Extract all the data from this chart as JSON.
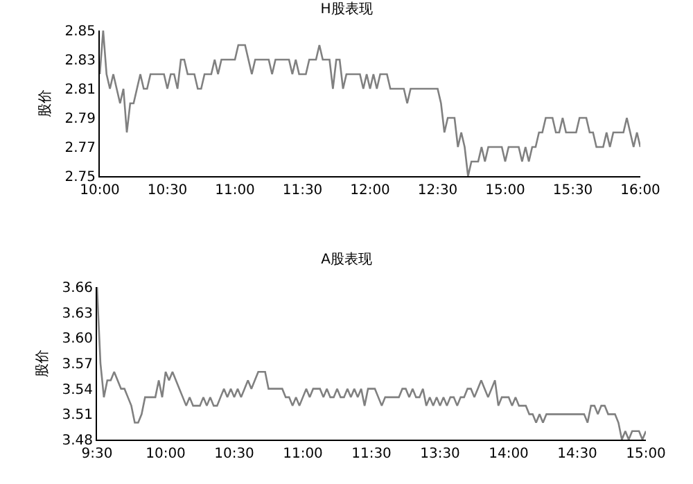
{
  "chart_data": [
    {
      "type": "line",
      "title": "H股表现",
      "ylabel": "股价",
      "grid": false,
      "marker": "none",
      "line_style": "solid",
      "categories": [
        "10:00",
        null,
        null,
        null,
        null,
        null,
        null,
        null,
        null,
        null,
        null,
        null,
        null,
        null,
        null,
        null,
        null,
        null,
        null,
        null,
        "10:30",
        null,
        null,
        null,
        null,
        null,
        null,
        null,
        null,
        null,
        null,
        null,
        null,
        null,
        null,
        null,
        null,
        null,
        null,
        null,
        "11:00",
        null,
        null,
        null,
        null,
        null,
        null,
        null,
        null,
        null,
        null,
        null,
        null,
        null,
        null,
        null,
        null,
        null,
        null,
        null,
        "11:30",
        null,
        null,
        null,
        null,
        null,
        null,
        null,
        null,
        null,
        null,
        null,
        null,
        null,
        null,
        null,
        null,
        null,
        null,
        null,
        "12:00",
        null,
        null,
        null,
        null,
        null,
        null,
        null,
        null,
        null,
        null,
        null,
        null,
        null,
        null,
        null,
        null,
        null,
        null,
        null,
        "12:30",
        null,
        null,
        null,
        null,
        null,
        null,
        null,
        null,
        null,
        null,
        null,
        null,
        null,
        null,
        null,
        null,
        null,
        null,
        null,
        "15:00",
        null,
        null,
        null,
        null,
        null,
        null,
        null,
        null,
        null,
        null,
        null,
        null,
        null,
        null,
        null,
        null,
        null,
        null,
        null,
        "15:30",
        null,
        null,
        null,
        null,
        null,
        null,
        null,
        null,
        null,
        null,
        null,
        null,
        null,
        null,
        null,
        null,
        null,
        null,
        null,
        "16:00"
      ],
      "ylim": [
        2.75,
        2.85
      ],
      "yticks": [
        2.75,
        2.77,
        2.79,
        2.81,
        2.83,
        2.85
      ],
      "series": [
        {
          "color": "#808080",
          "values": [
            2.82,
            2.85,
            2.82,
            2.81,
            2.82,
            2.81,
            2.8,
            2.81,
            2.78,
            2.8,
            2.8,
            2.81,
            2.82,
            2.81,
            2.81,
            2.82,
            2.82,
            2.82,
            2.82,
            2.82,
            2.81,
            2.82,
            2.82,
            2.81,
            2.83,
            2.83,
            2.82,
            2.82,
            2.82,
            2.81,
            2.81,
            2.82,
            2.82,
            2.82,
            2.83,
            2.82,
            2.83,
            2.83,
            2.83,
            2.83,
            2.83,
            2.84,
            2.84,
            2.84,
            2.83,
            2.82,
            2.83,
            2.83,
            2.83,
            2.83,
            2.83,
            2.82,
            2.83,
            2.83,
            2.83,
            2.83,
            2.83,
            2.82,
            2.83,
            2.82,
            2.82,
            2.82,
            2.83,
            2.83,
            2.83,
            2.84,
            2.83,
            2.83,
            2.83,
            2.81,
            2.83,
            2.83,
            2.81,
            2.82,
            2.82,
            2.82,
            2.82,
            2.82,
            2.81,
            2.82,
            2.81,
            2.82,
            2.81,
            2.82,
            2.82,
            2.82,
            2.81,
            2.81,
            2.81,
            2.81,
            2.81,
            2.8,
            2.81,
            2.81,
            2.81,
            2.81,
            2.81,
            2.81,
            2.81,
            2.81,
            2.81,
            2.8,
            2.78,
            2.79,
            2.79,
            2.79,
            2.77,
            2.78,
            2.77,
            2.75,
            2.76,
            2.76,
            2.76,
            2.77,
            2.76,
            2.77,
            2.77,
            2.77,
            2.77,
            2.77,
            2.76,
            2.77,
            2.77,
            2.77,
            2.77,
            2.76,
            2.77,
            2.76,
            2.77,
            2.77,
            2.78,
            2.78,
            2.79,
            2.79,
            2.79,
            2.78,
            2.78,
            2.79,
            2.78,
            2.78,
            2.78,
            2.78,
            2.79,
            2.79,
            2.79,
            2.78,
            2.78,
            2.77,
            2.77,
            2.77,
            2.78,
            2.77,
            2.78,
            2.78,
            2.78,
            2.78,
            2.79,
            2.78,
            2.77,
            2.78,
            2.77
          ]
        }
      ]
    },
    {
      "type": "line",
      "title": "A股表现",
      "ylabel": "股价",
      "grid": false,
      "marker": "none",
      "line_style": "solid",
      "categories": [
        "9:30",
        null,
        null,
        null,
        null,
        null,
        null,
        null,
        null,
        null,
        null,
        null,
        null,
        null,
        null,
        null,
        null,
        null,
        null,
        null,
        "10:00",
        null,
        null,
        null,
        null,
        null,
        null,
        null,
        null,
        null,
        null,
        null,
        null,
        null,
        null,
        null,
        null,
        null,
        null,
        null,
        "10:30",
        null,
        null,
        null,
        null,
        null,
        null,
        null,
        null,
        null,
        null,
        null,
        null,
        null,
        null,
        null,
        null,
        null,
        null,
        null,
        "11:00",
        null,
        null,
        null,
        null,
        null,
        null,
        null,
        null,
        null,
        null,
        null,
        null,
        null,
        null,
        null,
        null,
        null,
        null,
        null,
        "11:30",
        null,
        null,
        null,
        null,
        null,
        null,
        null,
        null,
        null,
        null,
        null,
        null,
        null,
        null,
        null,
        null,
        null,
        null,
        null,
        "13:30",
        null,
        null,
        null,
        null,
        null,
        null,
        null,
        null,
        null,
        null,
        null,
        null,
        null,
        null,
        null,
        null,
        null,
        null,
        null,
        "14:00",
        null,
        null,
        null,
        null,
        null,
        null,
        null,
        null,
        null,
        null,
        null,
        null,
        null,
        null,
        null,
        null,
        null,
        null,
        null,
        "14:30",
        null,
        null,
        null,
        null,
        null,
        null,
        null,
        null,
        null,
        null,
        null,
        null,
        null,
        null,
        null,
        null,
        null,
        null,
        null,
        "15:00"
      ],
      "ylim": [
        3.48,
        3.66
      ],
      "yticks": [
        3.48,
        3.51,
        3.54,
        3.57,
        {
          "value": 3.6,
          "label": "3.60"
        },
        3.63,
        3.66
      ],
      "series": [
        {
          "color": "#808080",
          "values": [
            3.66,
            3.57,
            3.53,
            3.55,
            3.55,
            3.56,
            3.55,
            3.54,
            3.54,
            3.53,
            3.52,
            3.5,
            3.5,
            3.51,
            3.53,
            3.53,
            3.53,
            3.53,
            3.55,
            3.53,
            3.56,
            3.55,
            3.56,
            3.55,
            3.54,
            3.53,
            3.52,
            3.53,
            3.52,
            3.52,
            3.52,
            3.53,
            3.52,
            3.53,
            3.52,
            3.52,
            3.53,
            3.54,
            3.53,
            3.54,
            3.53,
            3.54,
            3.53,
            3.54,
            3.55,
            3.54,
            3.55,
            3.56,
            3.56,
            3.56,
            3.54,
            3.54,
            3.54,
            3.54,
            3.54,
            3.53,
            3.53,
            3.52,
            3.53,
            3.52,
            3.53,
            3.54,
            3.53,
            3.54,
            3.54,
            3.54,
            3.53,
            3.54,
            3.53,
            3.53,
            3.54,
            3.53,
            3.53,
            3.54,
            3.53,
            3.54,
            3.53,
            3.54,
            3.52,
            3.54,
            3.54,
            3.54,
            3.53,
            3.52,
            3.53,
            3.53,
            3.53,
            3.53,
            3.53,
            3.54,
            3.54,
            3.53,
            3.54,
            3.53,
            3.53,
            3.54,
            3.52,
            3.53,
            3.52,
            3.53,
            3.52,
            3.53,
            3.52,
            3.53,
            3.53,
            3.52,
            3.53,
            3.53,
            3.54,
            3.54,
            3.53,
            3.54,
            3.55,
            3.54,
            3.53,
            3.54,
            3.55,
            3.52,
            3.53,
            3.53,
            3.53,
            3.52,
            3.53,
            3.52,
            3.52,
            3.52,
            3.51,
            3.51,
            3.5,
            3.51,
            3.5,
            3.51,
            3.51,
            3.51,
            3.51,
            3.51,
            3.51,
            3.51,
            3.51,
            3.51,
            3.51,
            3.51,
            3.51,
            3.5,
            3.52,
            3.52,
            3.51,
            3.52,
            3.52,
            3.51,
            3.51,
            3.51,
            3.5,
            3.48,
            3.49,
            3.48,
            3.49,
            3.49,
            3.49,
            3.48,
            3.49
          ]
        }
      ]
    }
  ]
}
